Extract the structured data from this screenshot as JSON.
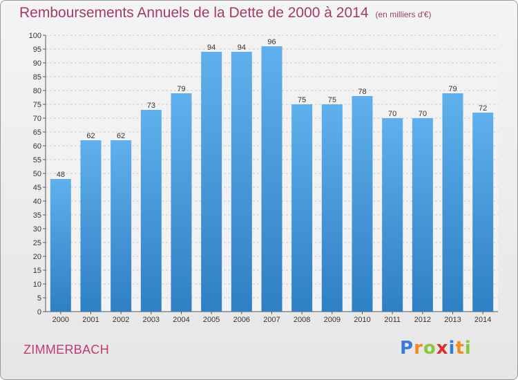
{
  "title": "Remboursements Annuels de la Dette de 2000 à 2014",
  "unit_note": "(en milliers d'€)",
  "commune": "ZIMMERBACH",
  "logo": {
    "letters": [
      "P",
      "r",
      "o",
      "x",
      "i",
      "t",
      "i"
    ],
    "colors": [
      "#3a7bd5",
      "#f28c1e",
      "#8cc63f",
      "#e02d2d",
      "#3a7bd5",
      "#f28c1e",
      "#8cc63f"
    ]
  },
  "colors": {
    "bar": "#3d8fd6",
    "bar_light": "#5fb0ec",
    "title": "#a33a6b",
    "grid": "#cccccc"
  },
  "chart_data": {
    "type": "bar",
    "title": "Remboursements Annuels de la Dette de 2000 à 2014",
    "categories": [
      "2000",
      "2001",
      "2002",
      "2003",
      "2004",
      "2005",
      "2006",
      "2007",
      "2008",
      "2009",
      "2010",
      "2011",
      "2012",
      "2013",
      "2014"
    ],
    "values": [
      48,
      62,
      62,
      73,
      79,
      94,
      94,
      96,
      75,
      75,
      78,
      70,
      70,
      79,
      72
    ],
    "ylim": [
      0,
      100
    ],
    "yticks": [
      0,
      5,
      10,
      15,
      20,
      25,
      30,
      35,
      40,
      45,
      50,
      55,
      60,
      65,
      70,
      75,
      80,
      85,
      90,
      95,
      100
    ],
    "grid": true,
    "xlabel": "",
    "ylabel": ""
  }
}
